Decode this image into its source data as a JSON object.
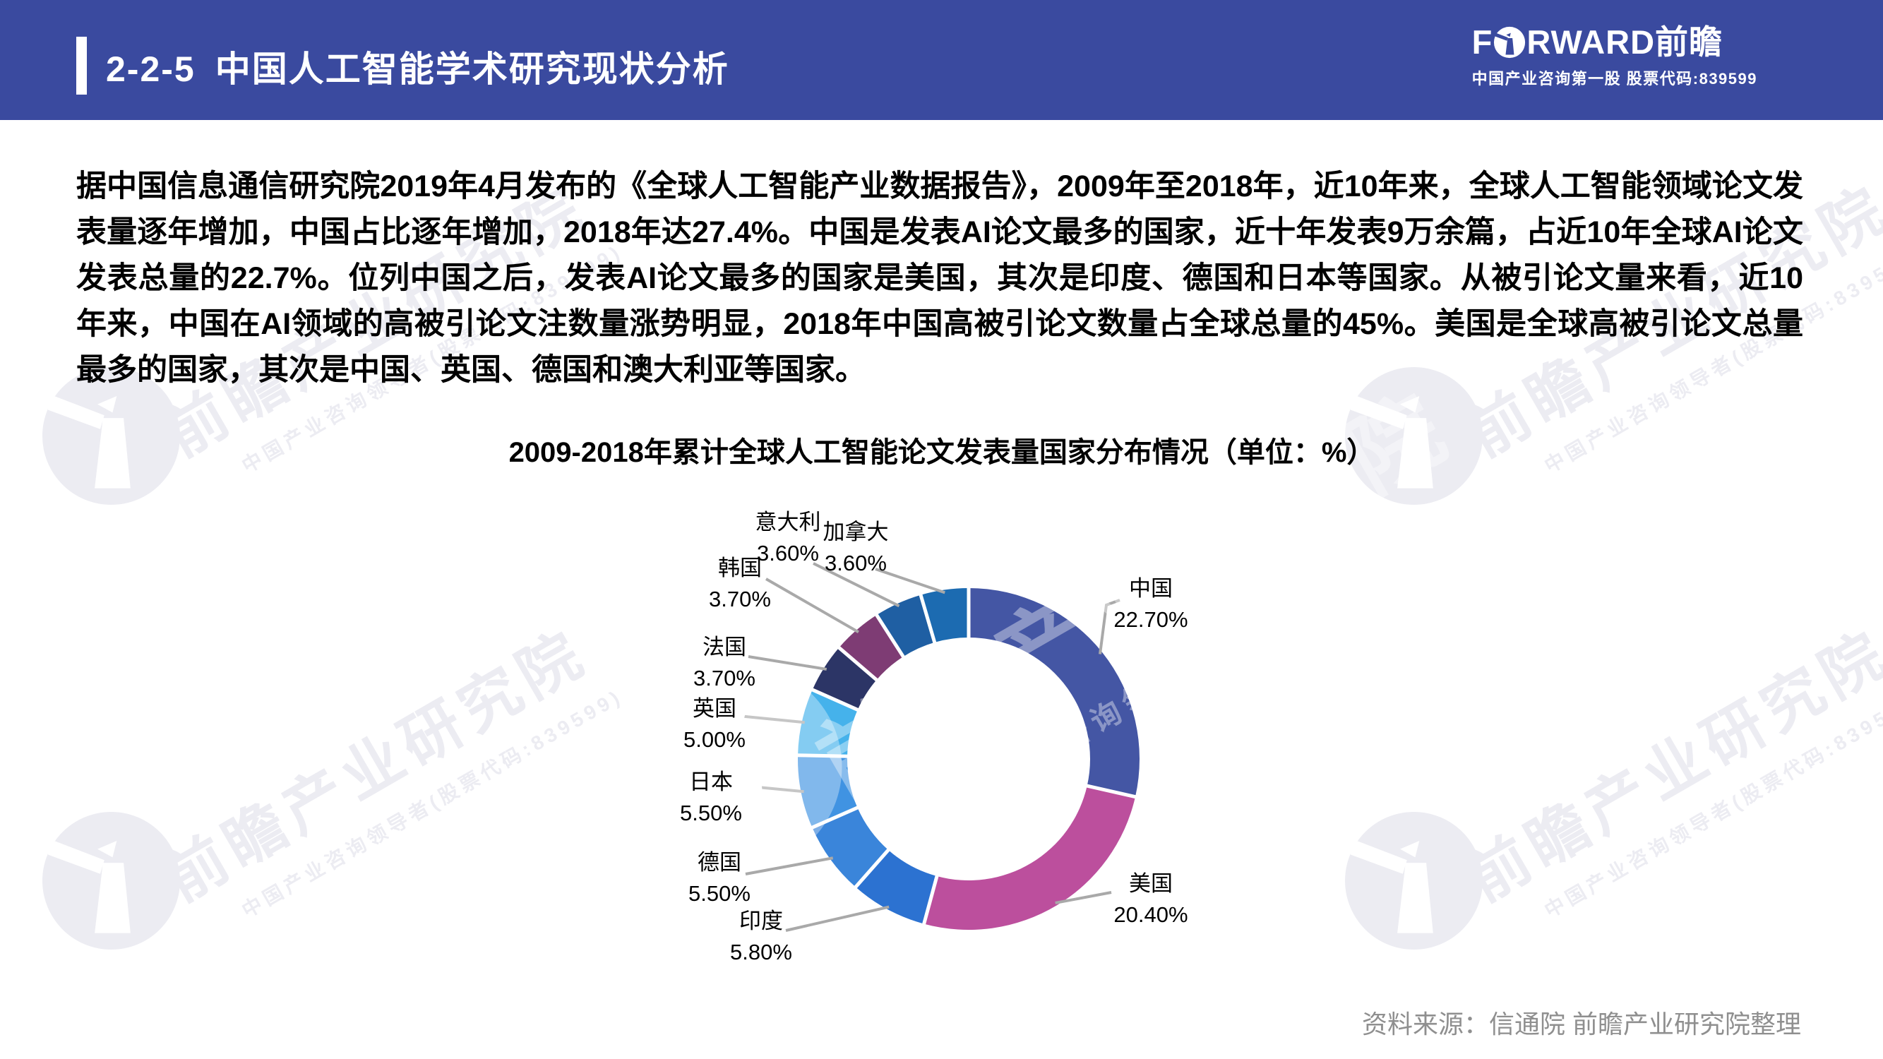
{
  "header": {
    "section_no": "2-2-5",
    "title": "中国人工智能学术研究现状分析",
    "brand_f": "F",
    "brand_rest": "RWARD",
    "brand_cn": "前瞻",
    "tagline": "中国产业咨询第一股 股票代码:839599"
  },
  "paragraph": "据中国信息通信研究院2019年4月发布的《全球人工智能产业数据报告》，2009年至2018年，近10年来，全球人工智能领域论文发表量逐年增加，中国占比逐年增加，2018年达27.4%。中国是发表AI论文最多的国家，近十年发表9万余篇，占近10年全球AI论文发表总量的22.7%。位列中国之后，发表AI论文最多的国家是美国，其次是印度、德国和日本等国家。从被引论文量来看，近10年来，中国在AI领域的高被引论文注数量涨势明显，2018年中国高被引论文数量占全球总量的45%。美国是全球高被引论文总量最多的国家，其次是中国、英国、德国和澳大利亚等国家。",
  "chart_data": {
    "type": "pie",
    "subtype": "donut",
    "title": "2009-2018年累计全球人工智能论文发表量国家分布情况（单位：%）",
    "unit": "%",
    "categories": [
      "中国",
      "美国",
      "印度",
      "德国",
      "日本",
      "英国",
      "法国",
      "韩国",
      "意大利",
      "加拿大"
    ],
    "values": [
      22.7,
      20.4,
      5.8,
      5.5,
      5.5,
      5.0,
      3.7,
      3.7,
      3.6,
      3.6
    ],
    "value_labels": [
      "22.70%",
      "20.40%",
      "5.80%",
      "5.50%",
      "5.50%",
      "5.00%",
      "3.70%",
      "3.70%",
      "3.60%",
      "3.60%"
    ],
    "colors": [
      "#4456A4",
      "#BC4F9D",
      "#2C72D1",
      "#3A85DA",
      "#4093E2",
      "#45B2EB",
      "#2C3566",
      "#7E3C74",
      "#1F5FA3",
      "#1C6BB1"
    ],
    "start_angle_deg": 0,
    "direction": "clockwise",
    "legend": "none",
    "leader_line_color": "#A9A9A9"
  },
  "source": "资料来源：信通院 前瞻产业研究院整理",
  "watermark": {
    "line1": "前瞻产业研究院",
    "line2": "中国产业咨询领导者(股票代码:839599)"
  }
}
